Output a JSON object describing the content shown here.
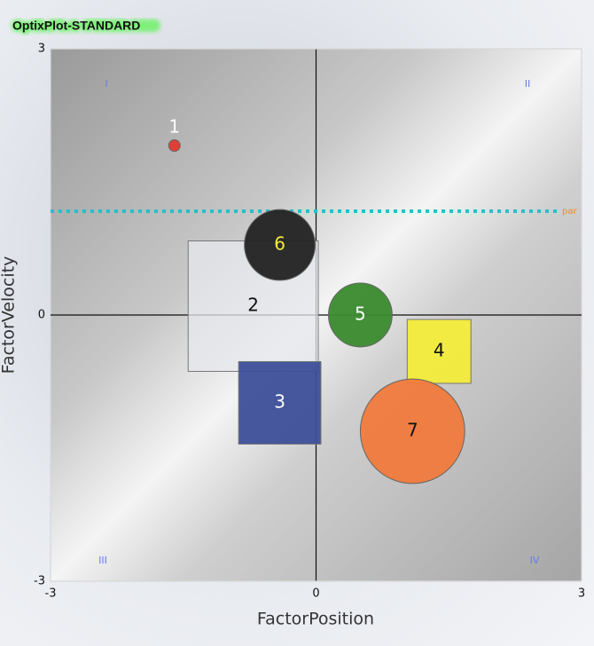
{
  "chart_data": {
    "type": "bubble",
    "title": "OptixPlot-STANDARD",
    "x_label": "FactorPosition",
    "y_label": "FactorVelocity",
    "xlim": [
      -3,
      3
    ],
    "ylim": [
      -3,
      3
    ],
    "xticks": [
      -3,
      0,
      3
    ],
    "yticks": [
      -3,
      0,
      3
    ],
    "labels": [
      "1",
      "2",
      "3",
      "4",
      "5",
      "6",
      "7"
    ],
    "x": [
      -1.6,
      -0.71,
      -0.41,
      1.39,
      0.5,
      -0.41,
      1.09
    ],
    "values": [
      1.91,
      0.1,
      -0.99,
      -0.41,
      0,
      0.79,
      -1.31
    ],
    "sizes": [
      0.13,
      1.47,
      0.93,
      0.72,
      0.72,
      0.8,
      1.18
    ],
    "shapes": [
      "circle",
      "square",
      "square",
      "square",
      "circle",
      "circle",
      "circle"
    ],
    "colors": [
      "#e03a2e",
      "#e6e8ee",
      "#3d4f9a",
      "#f2ec3a",
      "#3a8a2e",
      "#222222",
      "#f07a3c"
    ],
    "label_colors": [
      "#ffffff",
      "#111111",
      "#ffffff",
      "#111111",
      "#ffffff",
      "#f2ec3a",
      "#111111"
    ],
    "quadrant_labels": [
      "I",
      "II",
      "III",
      "IV"
    ],
    "reference_line": {
      "value": 1.17,
      "label": "par",
      "color": "#22c0cc"
    }
  }
}
